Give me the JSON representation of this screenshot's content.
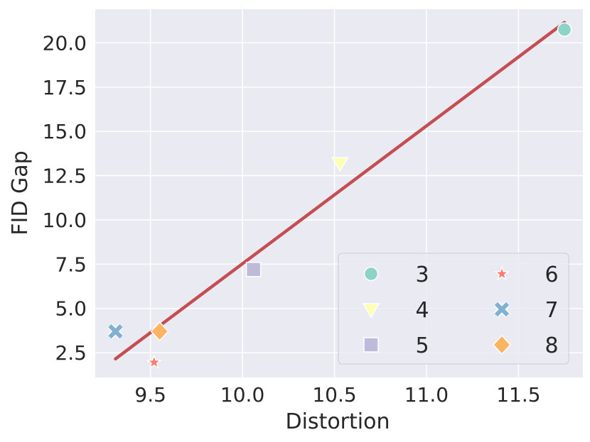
{
  "chart_data": {
    "type": "scatter",
    "title": "",
    "xlabel": "Distortion",
    "ylabel": "FID Gap",
    "xlim": [
      9.2,
      11.85
    ],
    "ylim": [
      1.1,
      21.9
    ],
    "xticks": [
      "9.5",
      "10.0",
      "10.5",
      "11.0",
      "11.5"
    ],
    "yticks": [
      "2.5",
      "5.0",
      "7.5",
      "10.0",
      "12.5",
      "15.0",
      "17.5",
      "20.0"
    ],
    "grid": true,
    "legend_position": "lower-right",
    "legend_columns": 2,
    "series": [
      {
        "name": "3",
        "marker": "circle",
        "color": "#8ed3c7",
        "x": [
          11.75
        ],
        "y": [
          20.75
        ]
      },
      {
        "name": "4",
        "marker": "triangle-down",
        "color": "#ffffb3",
        "x": [
          10.53
        ],
        "y": [
          13.2
        ]
      },
      {
        "name": "5",
        "marker": "square",
        "color": "#bfbada",
        "x": [
          10.06
        ],
        "y": [
          7.2
        ]
      },
      {
        "name": "6",
        "marker": "star",
        "color": "#fa8072",
        "x": [
          9.52
        ],
        "y": [
          1.95
        ]
      },
      {
        "name": "7",
        "marker": "x",
        "color": "#80b1d3",
        "x": [
          9.31
        ],
        "y": [
          3.7
        ]
      },
      {
        "name": "8",
        "marker": "diamond",
        "color": "#fdb462",
        "x": [
          9.55
        ],
        "y": [
          3.7
        ]
      }
    ],
    "fit_line": {
      "color": "#c44e52",
      "x": [
        9.31,
        11.75
      ],
      "y": [
        2.15,
        21.15
      ]
    }
  }
}
